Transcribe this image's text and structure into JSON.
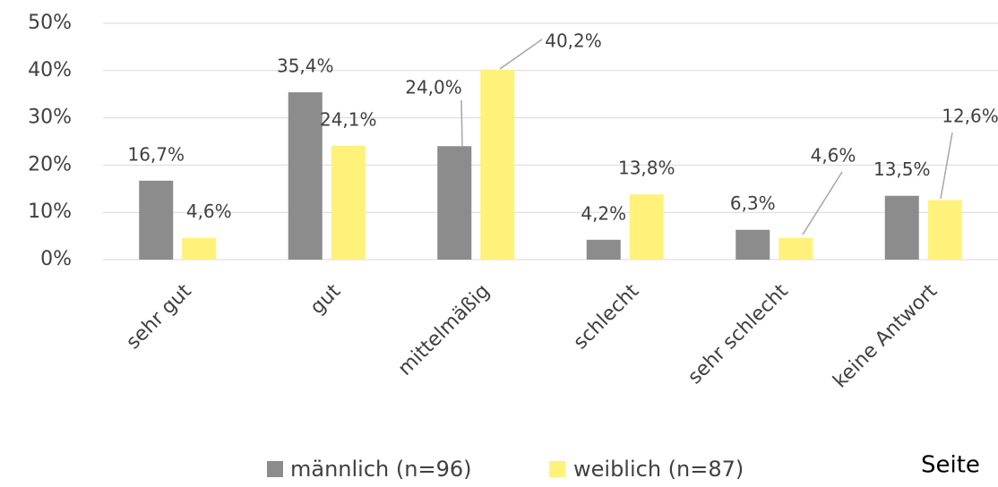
{
  "chart_data": {
    "type": "bar",
    "categories": [
      "sehr gut",
      "gut",
      "mittelmäßig",
      "schlecht",
      "sehr schlecht",
      "keine Antwort"
    ],
    "series": [
      {
        "name": "männlich (n=96)",
        "color": "#8c8c8c",
        "values": [
          16.7,
          35.4,
          24.0,
          4.2,
          6.3,
          13.5
        ],
        "value_labels": [
          "16,7%",
          "35,4%",
          "24,0%",
          "4,2%",
          "6,3%",
          "13,5%"
        ]
      },
      {
        "name": "weiblich (n=87)",
        "color": "#fff27a",
        "values": [
          4.6,
          24.1,
          40.2,
          13.8,
          4.6,
          12.6
        ],
        "value_labels": [
          "4,6%",
          "24,1%",
          "40,2%",
          "13,8%",
          "4,6%",
          "12,6%"
        ]
      }
    ],
    "ylim": [
      0,
      50
    ],
    "yticks": [
      {
        "value": 0,
        "label": "0%"
      },
      {
        "value": 10,
        "label": "10%"
      },
      {
        "value": 20,
        "label": "20%"
      },
      {
        "value": 30,
        "label": "30%"
      },
      {
        "value": 40,
        "label": "40%"
      },
      {
        "value": 50,
        "label": "50%"
      }
    ],
    "grid": true,
    "legend": "bottom",
    "footer": "Seite"
  }
}
